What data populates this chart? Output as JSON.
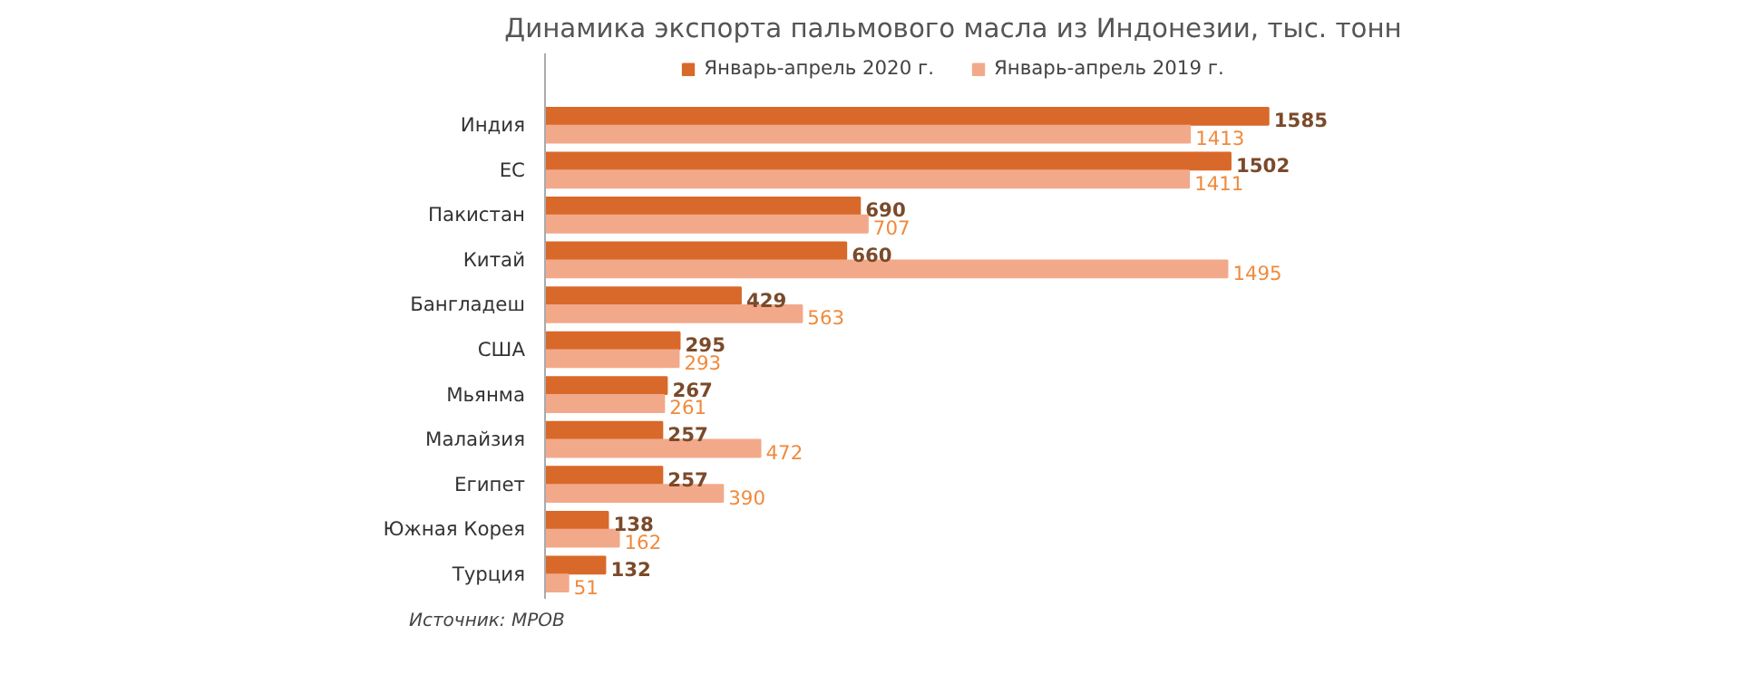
{
  "chart_data": {
    "type": "bar",
    "orientation": "horizontal",
    "title": "Динамика экспорта пальмового масла из Индонезии, тыс. тонн",
    "categories": [
      "Индия",
      "ЕС",
      "Пакистан",
      "Китай",
      "Бангладеш",
      "США",
      "Мьянма",
      "Малайзия",
      "Египет",
      "Южная Корея",
      "Турция"
    ],
    "series": [
      {
        "name": "Январь-апрель 2020 г.",
        "color": "#d9692a",
        "values": [
          1585,
          1502,
          690,
          660,
          429,
          295,
          267,
          257,
          257,
          138,
          132
        ]
      },
      {
        "name": "Январь-апрель 2019 г.",
        "color": "#f2a98a",
        "values": [
          1413,
          1411,
          707,
          1495,
          563,
          293,
          261,
          472,
          390,
          162,
          51
        ]
      }
    ],
    "data_labels": true,
    "legend": "top",
    "tick_labels": "y",
    "grid": false,
    "annotations": [
      "Источник: MPOB"
    ]
  }
}
